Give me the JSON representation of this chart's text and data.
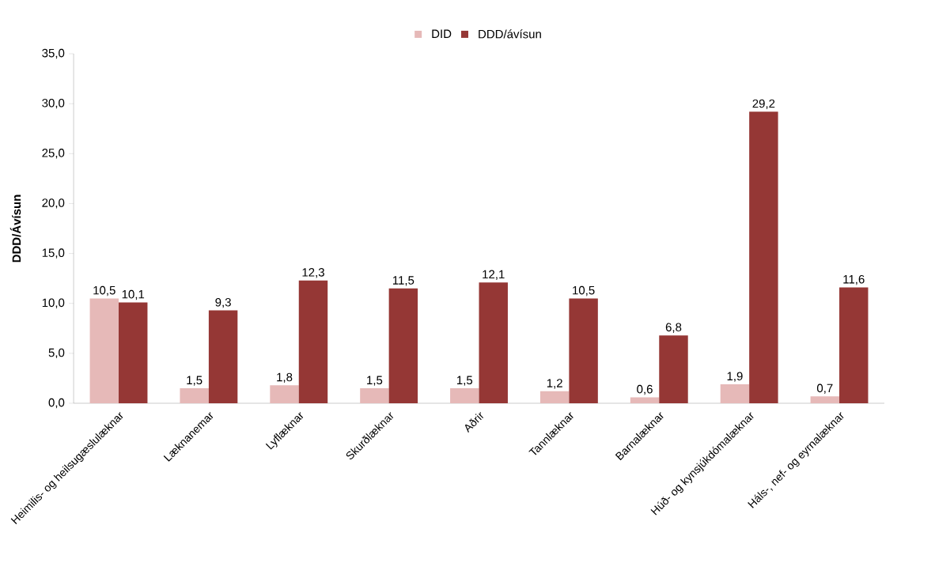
{
  "chart_data": {
    "type": "bar",
    "ylabel": "DDD/Ávísun",
    "categories": [
      "Heimilis- og heilsugæslulæknar",
      "Læknanemar",
      "Lyflæknar",
      "Skurðlæknar",
      "Aðrir",
      "Tannlæknar",
      "Barnalæknar",
      "Húð- og kynsjúkdómalæknar",
      "Háls-, nef- og eyrnalæknar"
    ],
    "series": [
      {
        "name": "DID",
        "color": "#e6b9b8",
        "values": [
          10.5,
          1.5,
          1.8,
          1.5,
          1.5,
          1.2,
          0.6,
          1.9,
          0.7
        ],
        "value_labels": [
          "10,5",
          "1,5",
          "1,8",
          "1,5",
          "1,5",
          "1,2",
          "0,6",
          "1,9",
          "0,7"
        ]
      },
      {
        "name": "DDD/ávísun",
        "color": "#953735",
        "values": [
          10.1,
          9.3,
          12.3,
          11.5,
          12.1,
          10.5,
          6.8,
          29.2,
          11.6
        ],
        "value_labels": [
          "10,1",
          "9,3",
          "12,3",
          "11,5",
          "12,1",
          "10,5",
          "6,8",
          "29,2",
          "11,6"
        ]
      }
    ],
    "ylim": [
      0,
      35
    ],
    "yticks": [
      {
        "value": 0,
        "label": "0,0"
      },
      {
        "value": 5,
        "label": "5,0"
      },
      {
        "value": 10,
        "label": "10,0"
      },
      {
        "value": 15,
        "label": "15,0"
      },
      {
        "value": 20,
        "label": "20,0"
      },
      {
        "value": 25,
        "label": "25,0"
      },
      {
        "value": 30,
        "label": "30,0"
      },
      {
        "value": 35,
        "label": "35,0"
      }
    ],
    "grid": false,
    "legend": "top"
  }
}
